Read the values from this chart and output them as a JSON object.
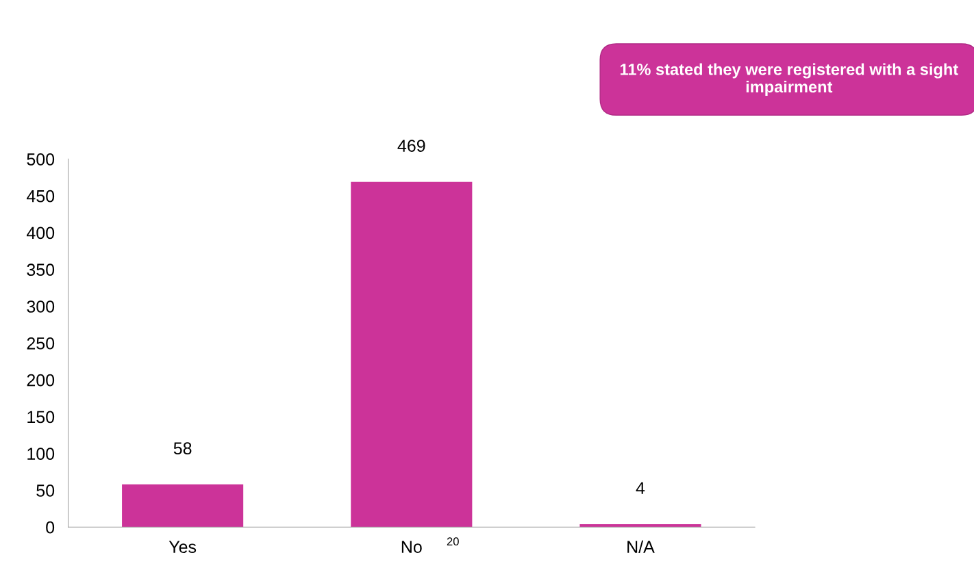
{
  "chart_data": {
    "type": "bar",
    "categories": [
      "Yes",
      "No",
      "N/A"
    ],
    "values": [
      58,
      469,
      4
    ],
    "color": "#cc3399",
    "ylim": [
      0,
      500
    ],
    "yticks": [
      0,
      50,
      100,
      150,
      200,
      250,
      300,
      350,
      400,
      450,
      500
    ],
    "grid": false,
    "data_labels": true,
    "annotations": [
      "11% stated they were registered with a sight impairment",
      "20"
    ]
  }
}
